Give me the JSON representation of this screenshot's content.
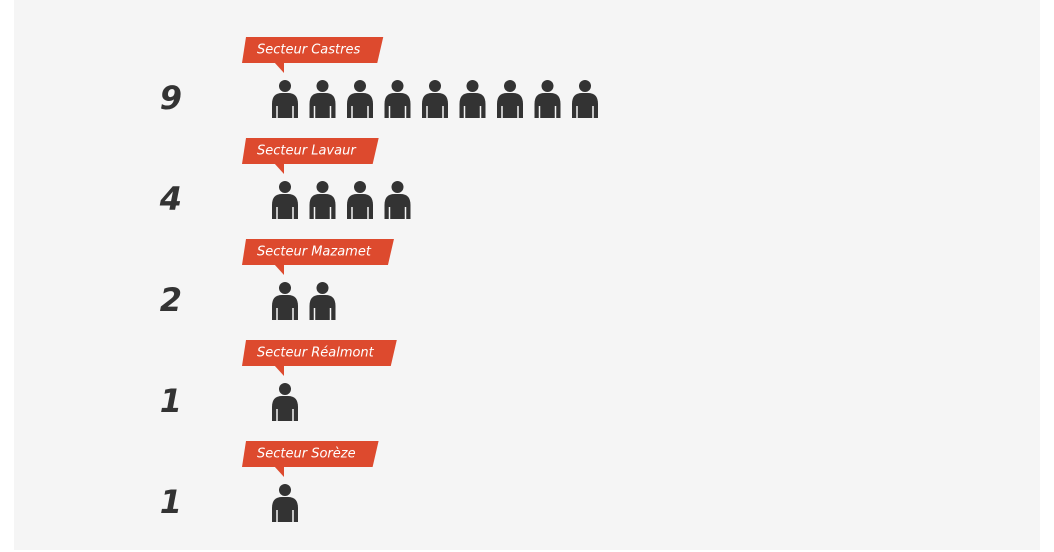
{
  "chart_data": {
    "type": "pictogram",
    "categories": [
      "Secteur Castres",
      "Secteur Lavaur",
      "Secteur Mazamet",
      "Secteur Réalmont",
      "Secteur Sorèze"
    ],
    "values": [
      9,
      4,
      2,
      1,
      1
    ],
    "color": "#333333",
    "label_color": "#dd4a2e"
  }
}
